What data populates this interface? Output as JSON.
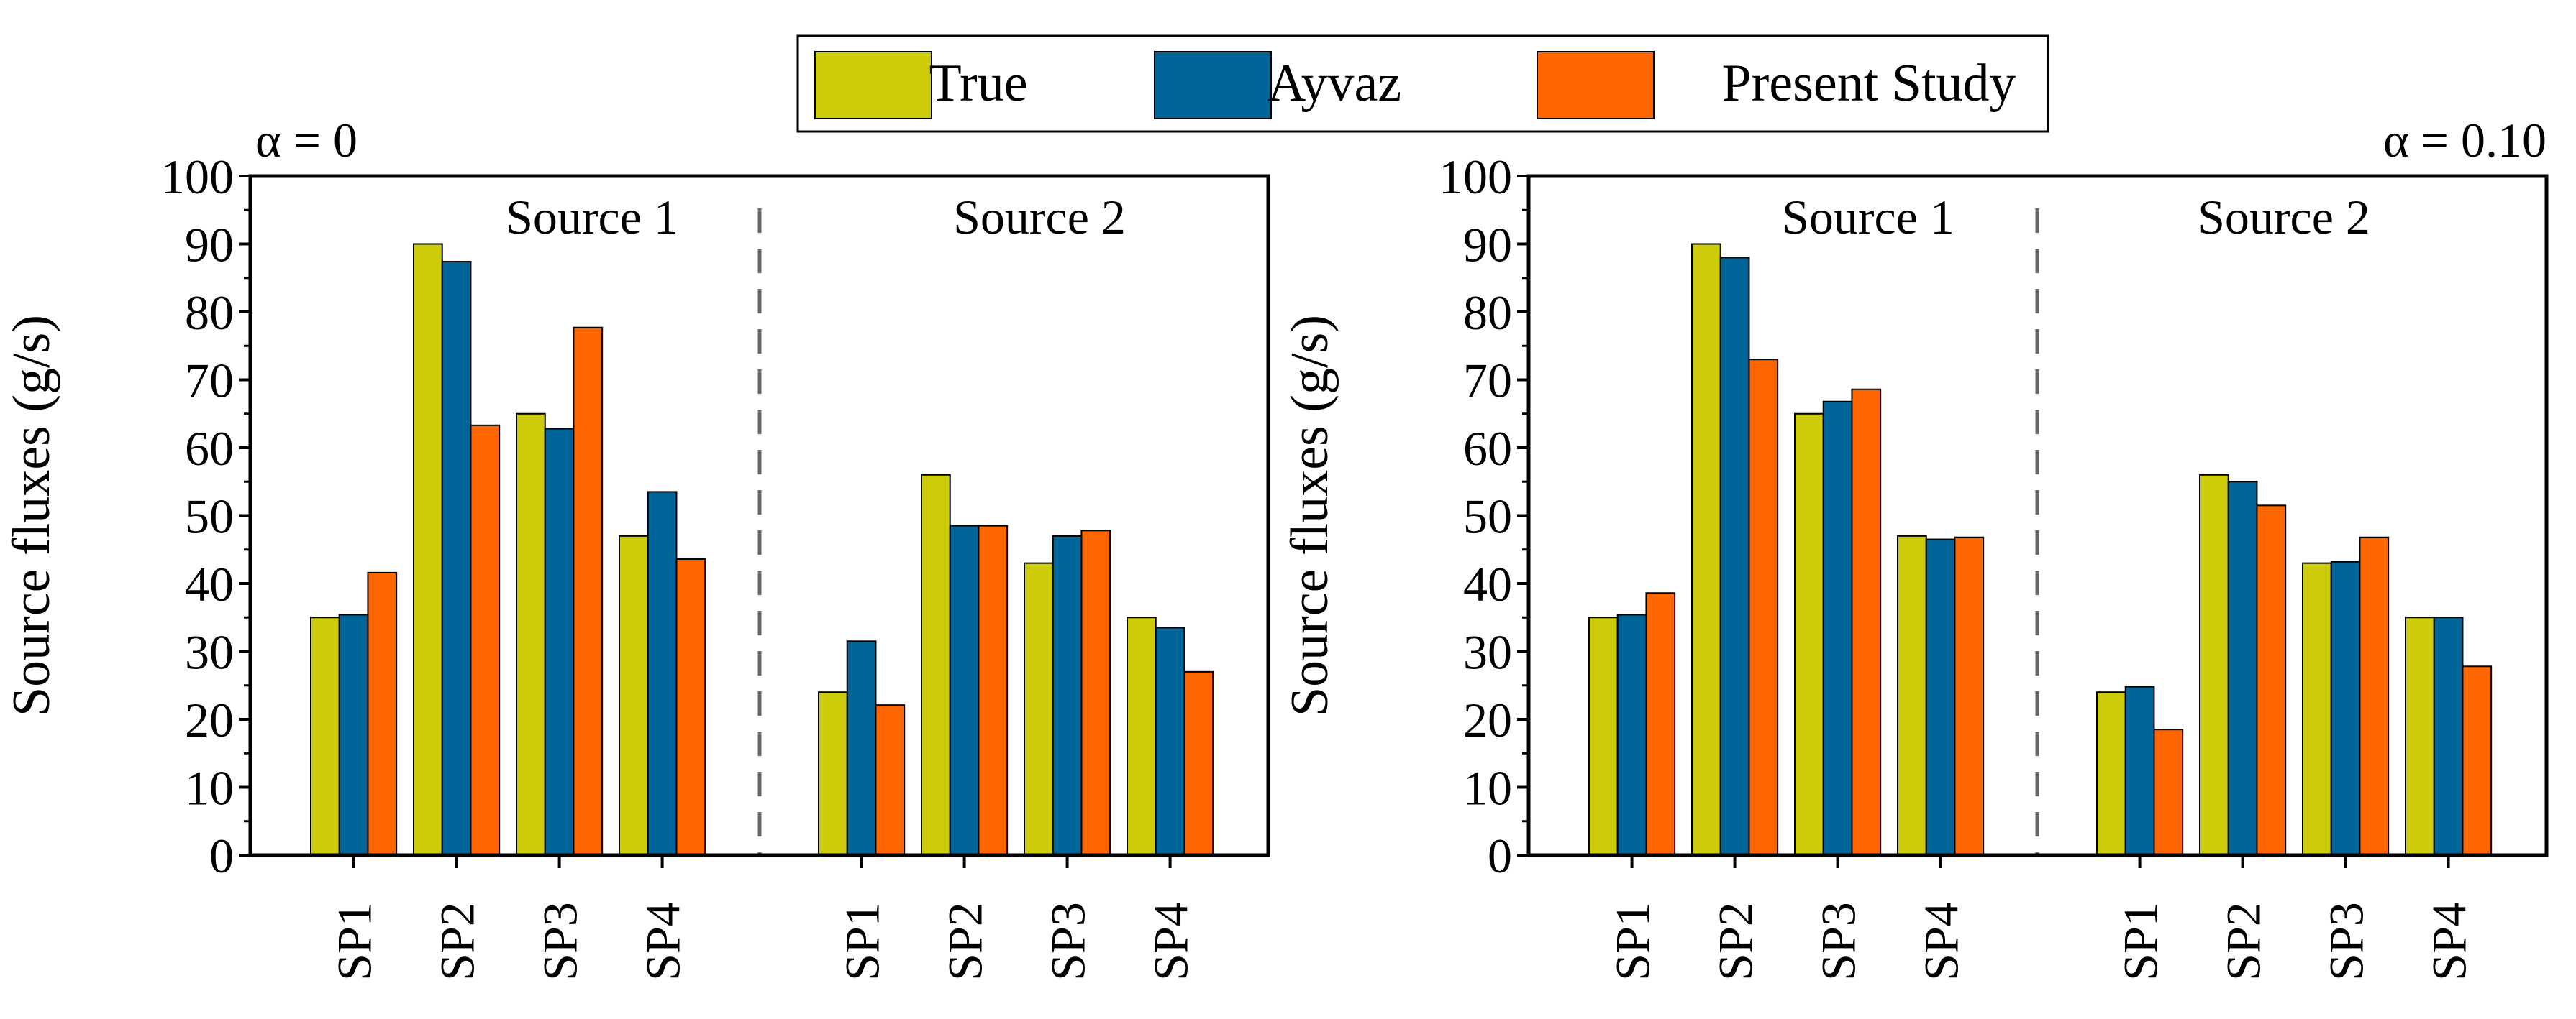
{
  "legend": {
    "items": [
      {
        "label": "True",
        "color": "#CCCC0A"
      },
      {
        "label": "Ayvaz",
        "color": "#006699"
      },
      {
        "label": "Present Study",
        "color": "#FF6600"
      }
    ]
  },
  "chart_data": [
    {
      "type": "bar",
      "annotation": "α = 0",
      "ylabel": "Source fluxes (g/s)",
      "ylim": [
        0,
        100
      ],
      "yticks": [
        "0",
        "10",
        "20",
        "30",
        "40",
        "50",
        "60",
        "70",
        "80",
        "90",
        "100"
      ],
      "groups": [
        {
          "label": "Source 1",
          "categories": [
            "SP1",
            "SP2",
            "SP3",
            "SP4"
          ]
        },
        {
          "label": "Source 2",
          "categories": [
            "SP1",
            "SP2",
            "SP3",
            "SP4"
          ]
        }
      ],
      "series": [
        {
          "name": "True",
          "color": "#CCCC0A",
          "values": [
            35,
            90,
            65,
            47,
            24,
            56,
            43,
            35
          ]
        },
        {
          "name": "Ayvaz",
          "color": "#006699",
          "values": [
            35.4,
            87.4,
            62.8,
            53.5,
            31.5,
            48.5,
            47,
            33.5
          ]
        },
        {
          "name": "Present Study",
          "color": "#FF6600",
          "values": [
            41.6,
            63.3,
            77.7,
            43.6,
            22.1,
            48.5,
            47.8,
            27
          ]
        }
      ]
    },
    {
      "type": "bar",
      "annotation": "α = 0.10",
      "ylabel": "Source fluxes (g/s)",
      "ylim": [
        0,
        100
      ],
      "yticks": [
        "0",
        "10",
        "20",
        "30",
        "40",
        "50",
        "60",
        "70",
        "80",
        "90",
        "100"
      ],
      "groups": [
        {
          "label": "Source 1",
          "categories": [
            "SP1",
            "SP2",
            "SP3",
            "SP4"
          ]
        },
        {
          "label": "Source 2",
          "categories": [
            "SP1",
            "SP2",
            "SP3",
            "SP4"
          ]
        }
      ],
      "series": [
        {
          "name": "True",
          "color": "#CCCC0A",
          "values": [
            35,
            90,
            65,
            47,
            24,
            56,
            43,
            35
          ]
        },
        {
          "name": "Ayvaz",
          "color": "#006699",
          "values": [
            35.4,
            88,
            66.8,
            46.5,
            24.8,
            55,
            43.2,
            35
          ]
        },
        {
          "name": "Present Study",
          "color": "#FF6600",
          "values": [
            38.6,
            73,
            68.6,
            46.8,
            18.5,
            51.5,
            46.8,
            27.8
          ]
        }
      ]
    }
  ]
}
